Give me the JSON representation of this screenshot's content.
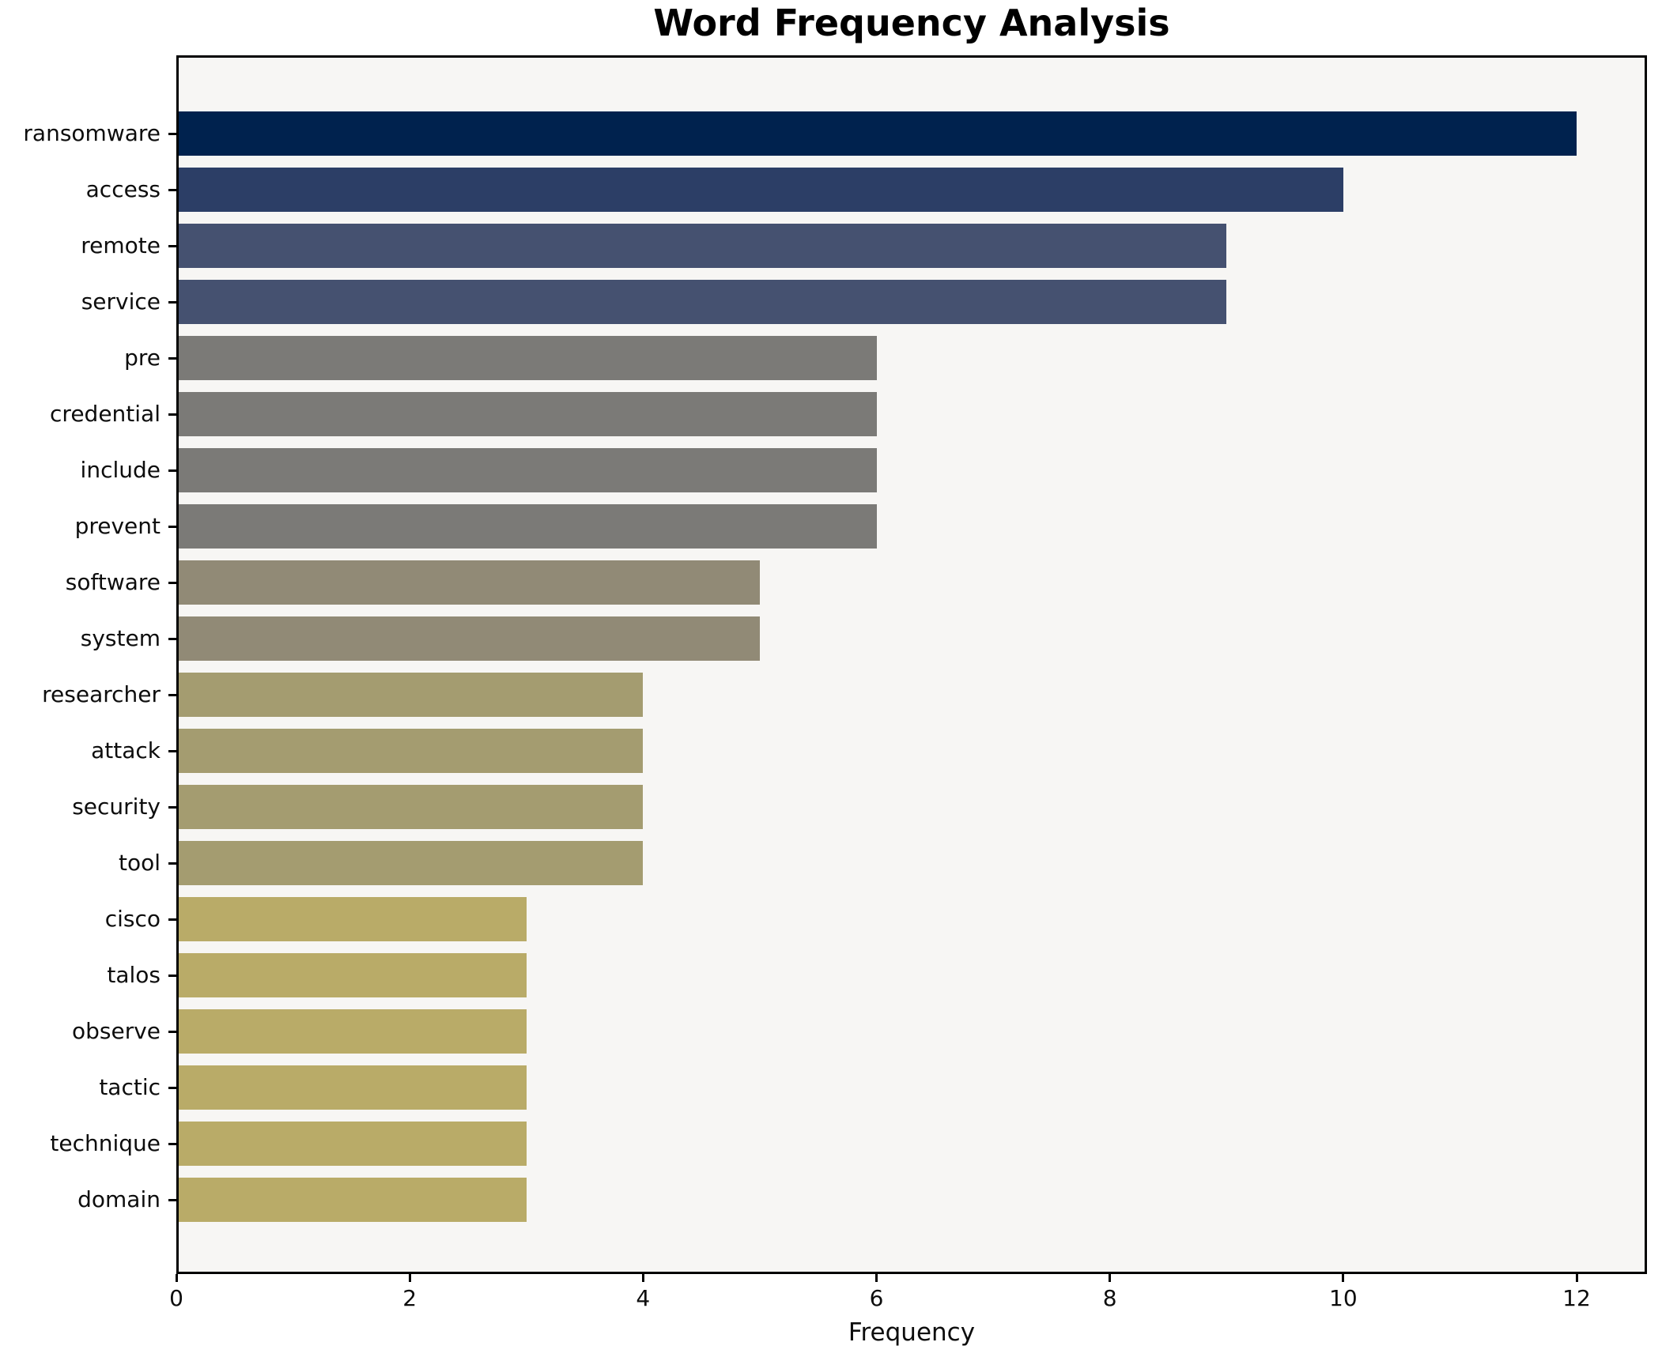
{
  "chart_data": {
    "type": "bar",
    "orientation": "horizontal",
    "title": "Word Frequency Analysis",
    "xlabel": "Frequency",
    "ylabel": "",
    "categories": [
      "ransomware",
      "access",
      "remote",
      "service",
      "pre",
      "credential",
      "include",
      "prevent",
      "software",
      "system",
      "researcher",
      "attack",
      "security",
      "tool",
      "cisco",
      "talos",
      "observe",
      "tactic",
      "technique",
      "domain"
    ],
    "values": [
      12,
      10,
      9,
      9,
      6,
      6,
      6,
      6,
      5,
      5,
      4,
      4,
      4,
      4,
      3,
      3,
      3,
      3,
      3,
      3
    ],
    "bar_colors": [
      "#00224e",
      "#2c3e66",
      "#455170",
      "#455170",
      "#7b7a77",
      "#7b7a77",
      "#7b7a77",
      "#7b7a77",
      "#918a76",
      "#918a76",
      "#a49c70",
      "#a49c70",
      "#a49c70",
      "#a49c70",
      "#b9ab68",
      "#b9ab68",
      "#b9ab68",
      "#b9ab68",
      "#b9ab68",
      "#b9ab68"
    ],
    "x_ticks": [
      0,
      2,
      4,
      6,
      8,
      10,
      12
    ],
    "xlim": [
      0,
      12.6
    ],
    "grid": false,
    "legend_position": "none",
    "plot_background": "#f7f6f4",
    "frame_color": "#000000",
    "title_color": "#000000"
  }
}
